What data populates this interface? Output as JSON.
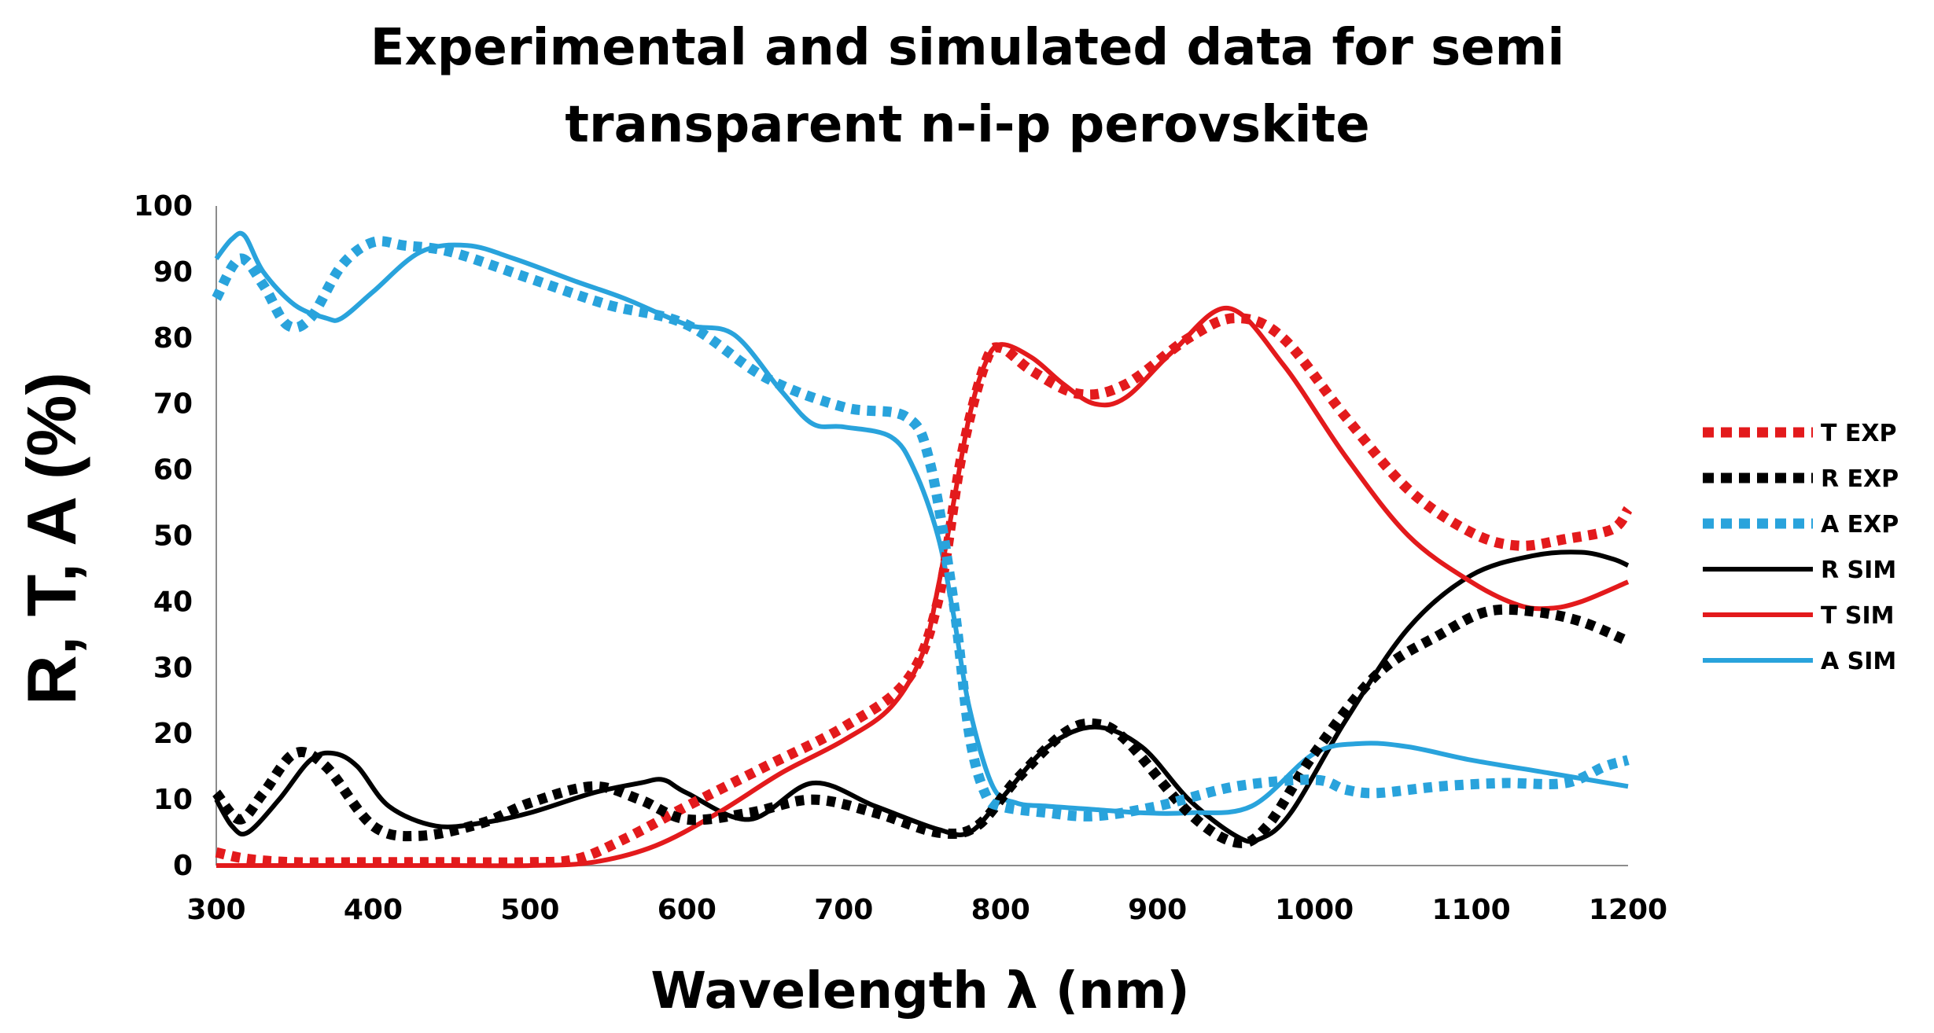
{
  "chart_data": {
    "type": "line",
    "title": "Experimental and simulated data for semi transparent n-i-p perovskite",
    "title_lines": [
      "Experimental and simulated data for semi",
      "transparent n-i-p perovskite"
    ],
    "xlabel": "Wavelength λ (nm)",
    "ylabel": "R, T, A (%)",
    "xlim": [
      300,
      1200
    ],
    "ylim": [
      0,
      100
    ],
    "xticks": [
      300,
      400,
      500,
      600,
      700,
      800,
      900,
      1000,
      1100,
      1200
    ],
    "yticks": [
      0,
      10,
      20,
      30,
      40,
      50,
      60,
      70,
      80,
      90,
      100
    ],
    "grid": false,
    "legend_position": "right",
    "series": [
      {
        "name": "T EXP",
        "color": "#e31a1c",
        "style": "dotted",
        "x": [
          300,
          320,
          350,
          400,
          450,
          500,
          530,
          560,
          600,
          650,
          700,
          740,
          760,
          775,
          790,
          800,
          820,
          850,
          880,
          920,
          950,
          980,
          1020,
          1060,
          1100,
          1130,
          1160,
          1190,
          1200
        ],
        "y": [
          2,
          1,
          0.5,
          0.5,
          0.5,
          0.5,
          1,
          4,
          9,
          15,
          21,
          28,
          40,
          62,
          76,
          78.5,
          75,
          71.5,
          73,
          80,
          83,
          80,
          68,
          57,
          50.5,
          48.5,
          49.5,
          51,
          54
        ]
      },
      {
        "name": "R EXP",
        "color": "#000000",
        "style": "dotted",
        "x": [
          300,
          315,
          330,
          350,
          370,
          400,
          430,
          470,
          500,
          540,
          570,
          600,
          640,
          680,
          720,
          760,
          785,
          810,
          840,
          860,
          880,
          920,
          950,
          970,
          1000,
          1040,
          1080,
          1110,
          1140,
          1170,
          1200
        ],
        "y": [
          11,
          7,
          11,
          17,
          15,
          6,
          4.5,
          6.5,
          9.5,
          12,
          10,
          7,
          8,
          10,
          8,
          5,
          6,
          13,
          20,
          21.5,
          19,
          8,
          3.5,
          6,
          17,
          29,
          35,
          38.5,
          38.5,
          37,
          34
        ]
      },
      {
        "name": "A EXP",
        "color": "#29a3dc",
        "style": "dotted",
        "x": [
          300,
          315,
          330,
          345,
          360,
          380,
          400,
          420,
          450,
          500,
          550,
          600,
          650,
          700,
          740,
          755,
          770,
          780,
          790,
          800,
          830,
          860,
          900,
          950,
          1000,
          1020,
          1040,
          1080,
          1120,
          1160,
          1185,
          1200
        ],
        "y": [
          86,
          92,
          88,
          82,
          83,
          91,
          94.5,
          94,
          93,
          89,
          85,
          82,
          74,
          69.5,
          68,
          61,
          40,
          20,
          11,
          9,
          8,
          7.5,
          9,
          12,
          13,
          11.5,
          11,
          12,
          12.5,
          12.5,
          15,
          16
        ]
      },
      {
        "name": "R SIM",
        "color": "#000000",
        "style": "solid",
        "x": [
          300,
          310,
          320,
          340,
          360,
          375,
          390,
          410,
          440,
          470,
          500,
          540,
          570,
          585,
          600,
          640,
          680,
          720,
          760,
          780,
          800,
          830,
          860,
          890,
          920,
          950,
          965,
          985,
          1020,
          1060,
          1100,
          1140,
          1170,
          1190,
          1200
        ],
        "y": [
          10,
          6,
          5,
          10,
          16,
          17,
          15,
          9,
          6,
          6.5,
          8,
          11,
          12.5,
          13,
          11,
          7,
          12.5,
          9,
          5.5,
          5,
          10,
          18,
          21,
          18,
          10,
          4.5,
          4,
          8,
          22,
          36,
          44,
          47,
          47.5,
          46.5,
          45.5
        ]
      },
      {
        "name": "T SIM",
        "color": "#e31a1c",
        "style": "solid",
        "x": [
          300,
          350,
          400,
          450,
          500,
          540,
          580,
          620,
          660,
          700,
          730,
          750,
          760,
          770,
          780,
          790,
          800,
          820,
          840,
          860,
          880,
          910,
          945,
          980,
          1020,
          1060,
          1100,
          1130,
          1150,
          1170,
          1200
        ],
        "y": [
          0,
          0,
          0,
          0,
          0,
          0.5,
          3,
          8,
          14,
          19,
          24,
          32,
          42,
          55,
          68,
          76,
          79,
          77,
          73,
          70,
          71,
          78,
          84.5,
          76,
          62,
          50,
          43,
          39.5,
          39,
          40,
          43
        ]
      },
      {
        "name": "A SIM",
        "color": "#29a3dc",
        "style": "solid",
        "x": [
          300,
          310,
          318,
          330,
          350,
          370,
          380,
          400,
          430,
          460,
          490,
          530,
          560,
          600,
          630,
          660,
          680,
          700,
          730,
          745,
          760,
          770,
          780,
          795,
          810,
          830,
          860,
          890,
          920,
          960,
          1000,
          1030,
          1060,
          1100,
          1150,
          1200
        ],
        "y": [
          92,
          95,
          95.5,
          90,
          85,
          83,
          83,
          87,
          93,
          94,
          92,
          88.5,
          86,
          82,
          80.5,
          72,
          67,
          66.5,
          65,
          60,
          50,
          38,
          24,
          12,
          9.5,
          9,
          8.5,
          8,
          8,
          9,
          17,
          18.5,
          18,
          16,
          14,
          12
        ]
      }
    ]
  }
}
